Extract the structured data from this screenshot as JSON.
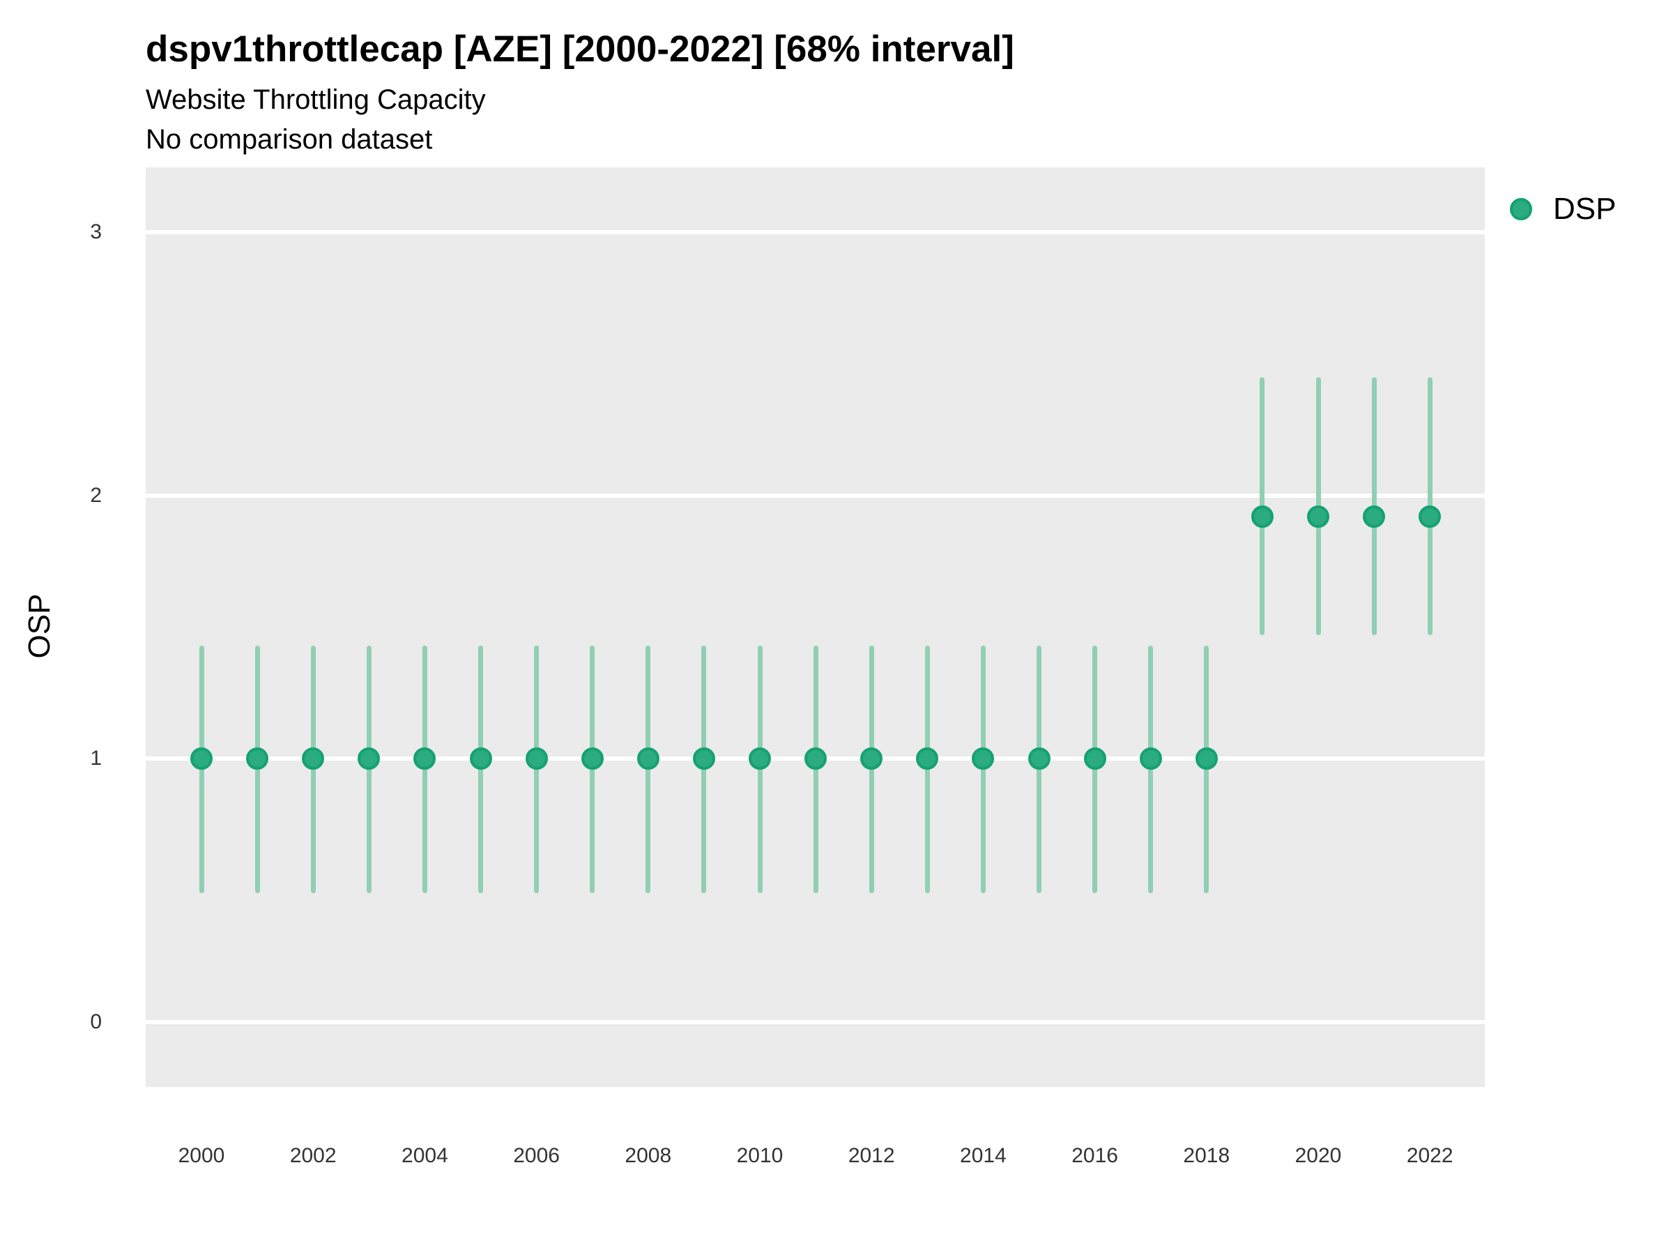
{
  "chart_data": {
    "type": "scatter",
    "title": "dspv1throttlecap [AZE] [2000-2022] [68% interval]",
    "subtitle": "Website Throttling Capacity",
    "comparison_note": "No comparison dataset",
    "xlabel": "",
    "ylabel": "OSP",
    "ylim": [
      -0.25,
      3.25
    ],
    "xlim": [
      1999,
      2023
    ],
    "yticks": [
      0,
      1,
      2,
      3
    ],
    "x_tick_labels": [
      "2000",
      "2002",
      "2004",
      "2006",
      "2008",
      "2010",
      "2012",
      "2014",
      "2016",
      "2018",
      "2020",
      "2022"
    ],
    "grid": "horizontal-major-only",
    "legend_position": "right",
    "legend": {
      "label": "DSP"
    },
    "colors": {
      "point_fill": "#2BAB80",
      "point_border": "#14A173",
      "errorbar": "#90CFB3",
      "panel_bg": "#EBEBEB",
      "gridline": "#FFFFFF"
    },
    "interval_label": "68% interval",
    "series": [
      {
        "name": "DSP",
        "points": [
          {
            "year": 2000,
            "value": 1.0,
            "low": 0.49,
            "high": 1.43
          },
          {
            "year": 2001,
            "value": 1.0,
            "low": 0.49,
            "high": 1.43
          },
          {
            "year": 2002,
            "value": 1.0,
            "low": 0.49,
            "high": 1.43
          },
          {
            "year": 2003,
            "value": 1.0,
            "low": 0.49,
            "high": 1.43
          },
          {
            "year": 2004,
            "value": 1.0,
            "low": 0.49,
            "high": 1.43
          },
          {
            "year": 2005,
            "value": 1.0,
            "low": 0.49,
            "high": 1.43
          },
          {
            "year": 2006,
            "value": 1.0,
            "low": 0.49,
            "high": 1.43
          },
          {
            "year": 2007,
            "value": 1.0,
            "low": 0.49,
            "high": 1.43
          },
          {
            "year": 2008,
            "value": 1.0,
            "low": 0.49,
            "high": 1.43
          },
          {
            "year": 2009,
            "value": 1.0,
            "low": 0.49,
            "high": 1.43
          },
          {
            "year": 2010,
            "value": 1.0,
            "low": 0.49,
            "high": 1.43
          },
          {
            "year": 2011,
            "value": 1.0,
            "low": 0.49,
            "high": 1.43
          },
          {
            "year": 2012,
            "value": 1.0,
            "low": 0.49,
            "high": 1.43
          },
          {
            "year": 2013,
            "value": 1.0,
            "low": 0.49,
            "high": 1.43
          },
          {
            "year": 2014,
            "value": 1.0,
            "low": 0.49,
            "high": 1.43
          },
          {
            "year": 2015,
            "value": 1.0,
            "low": 0.49,
            "high": 1.43
          },
          {
            "year": 2016,
            "value": 1.0,
            "low": 0.49,
            "high": 1.43
          },
          {
            "year": 2017,
            "value": 1.0,
            "low": 0.49,
            "high": 1.43
          },
          {
            "year": 2018,
            "value": 1.0,
            "low": 0.49,
            "high": 1.43
          },
          {
            "year": 2019,
            "value": 1.92,
            "low": 1.47,
            "high": 2.45
          },
          {
            "year": 2020,
            "value": 1.92,
            "low": 1.47,
            "high": 2.45
          },
          {
            "year": 2021,
            "value": 1.92,
            "low": 1.47,
            "high": 2.45
          },
          {
            "year": 2022,
            "value": 1.92,
            "low": 1.47,
            "high": 2.45
          }
        ]
      }
    ]
  }
}
